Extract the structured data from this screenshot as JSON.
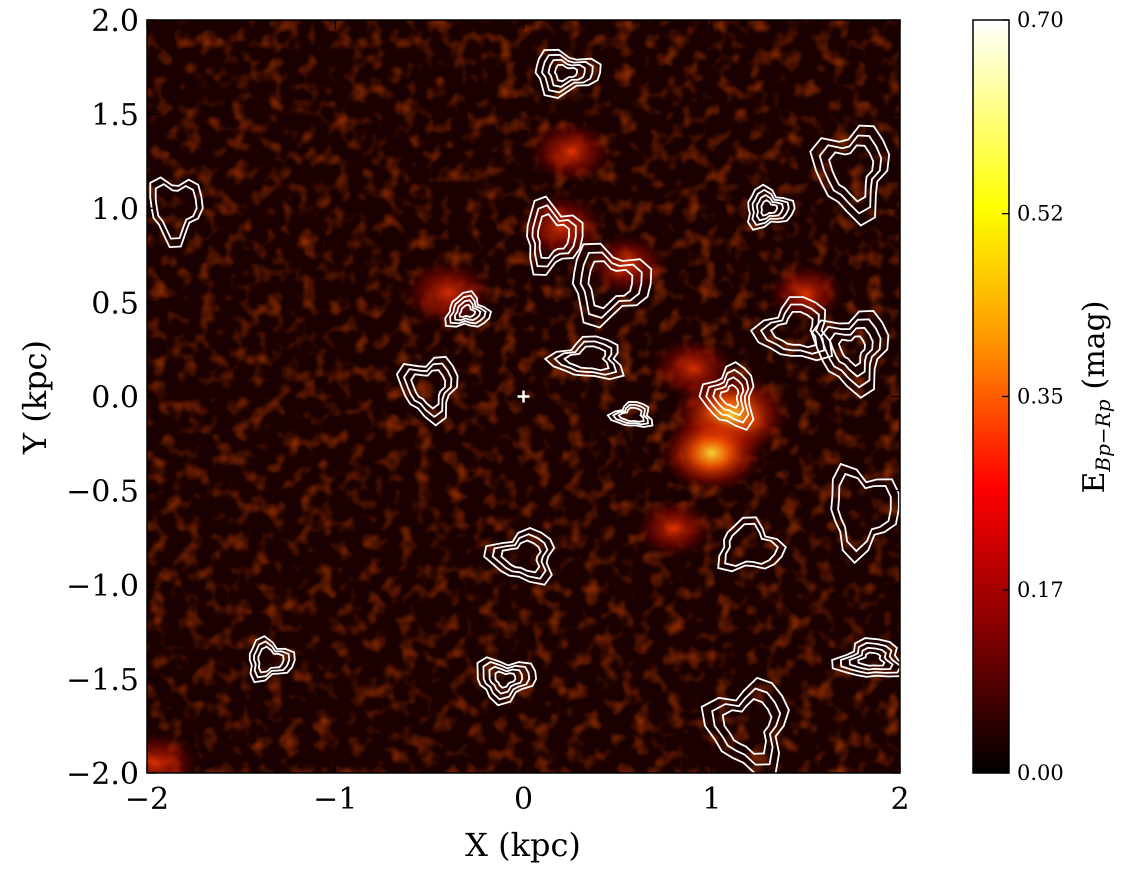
{
  "chart_data": {
    "type": "heatmap",
    "title": "",
    "xlabel": "X (kpc)",
    "ylabel": "Y (kpc)",
    "xlim": [
      -2,
      2
    ],
    "ylim": [
      -2,
      2
    ],
    "x_ticks": [
      -2,
      -1,
      0,
      1,
      2
    ],
    "y_ticks": [
      -2.0,
      -1.5,
      -1.0,
      -0.5,
      0.0,
      0.5,
      1.0,
      1.5,
      2.0
    ],
    "x_tick_labels": [
      "−2",
      "−1",
      "0",
      "1",
      "2"
    ],
    "y_tick_labels": [
      "−2.0",
      "−1.5",
      "−1.0",
      "−0.5",
      "0.0",
      "0.5",
      "1.0",
      "1.5",
      "2.0"
    ],
    "grid": false,
    "colormap": "hot",
    "colormap_colors": [
      "#000000",
      "#8b0000",
      "#ff0000",
      "#ff8c00",
      "#ffff00",
      "#ffffff"
    ],
    "contour_color": "#ffffff",
    "colorbar": {
      "label_main": "E",
      "label_sub": "Bp−Rp",
      "label_unit": "(mag)",
      "range": [
        0.0,
        0.7
      ],
      "ticks": [
        0.0,
        0.17,
        0.35,
        0.52,
        0.7
      ],
      "tick_labels": [
        "0.00",
        "0.17",
        "0.35",
        "0.52",
        "0.70"
      ]
    },
    "center_marker": {
      "x": 0.0,
      "y": 0.0,
      "symbol": "+"
    },
    "extinction_hotspots": [
      {
        "x": 1.1,
        "y": -0.1,
        "value": 0.55
      },
      {
        "x": 1.0,
        "y": -0.3,
        "value": 0.45
      },
      {
        "x": -0.4,
        "y": 0.55,
        "value": 0.35
      },
      {
        "x": 0.2,
        "y": 0.9,
        "value": 0.35
      },
      {
        "x": 0.25,
        "y": 1.3,
        "value": 0.3
      },
      {
        "x": 0.9,
        "y": 0.15,
        "value": 0.3
      },
      {
        "x": 0.55,
        "y": 0.7,
        "value": 0.28
      },
      {
        "x": 0.8,
        "y": -0.7,
        "value": 0.25
      },
      {
        "x": -1.95,
        "y": -1.95,
        "value": 0.3
      },
      {
        "x": 1.5,
        "y": 0.55,
        "value": 0.25
      }
    ],
    "contour_regions": [
      {
        "x": 0.22,
        "y": 1.72
      },
      {
        "x": 1.3,
        "y": 1.0
      },
      {
        "x": 1.75,
        "y": 1.2
      },
      {
        "x": 0.45,
        "y": 0.6
      },
      {
        "x": 0.15,
        "y": 0.85
      },
      {
        "x": -0.3,
        "y": 0.45
      },
      {
        "x": -0.5,
        "y": 0.05
      },
      {
        "x": 0.35,
        "y": 0.2
      },
      {
        "x": 0.58,
        "y": -0.1
      },
      {
        "x": 1.45,
        "y": 0.35
      },
      {
        "x": 1.75,
        "y": 0.25
      },
      {
        "x": 1.1,
        "y": 0.0
      },
      {
        "x": 0.0,
        "y": -0.85
      },
      {
        "x": -1.35,
        "y": -1.4
      },
      {
        "x": -0.1,
        "y": -1.5
      },
      {
        "x": 1.85,
        "y": -1.4
      },
      {
        "x": 1.8,
        "y": -0.6
      },
      {
        "x": -1.85,
        "y": 1.0
      },
      {
        "x": 1.2,
        "y": -0.8
      },
      {
        "x": 1.2,
        "y": -1.75
      }
    ]
  }
}
